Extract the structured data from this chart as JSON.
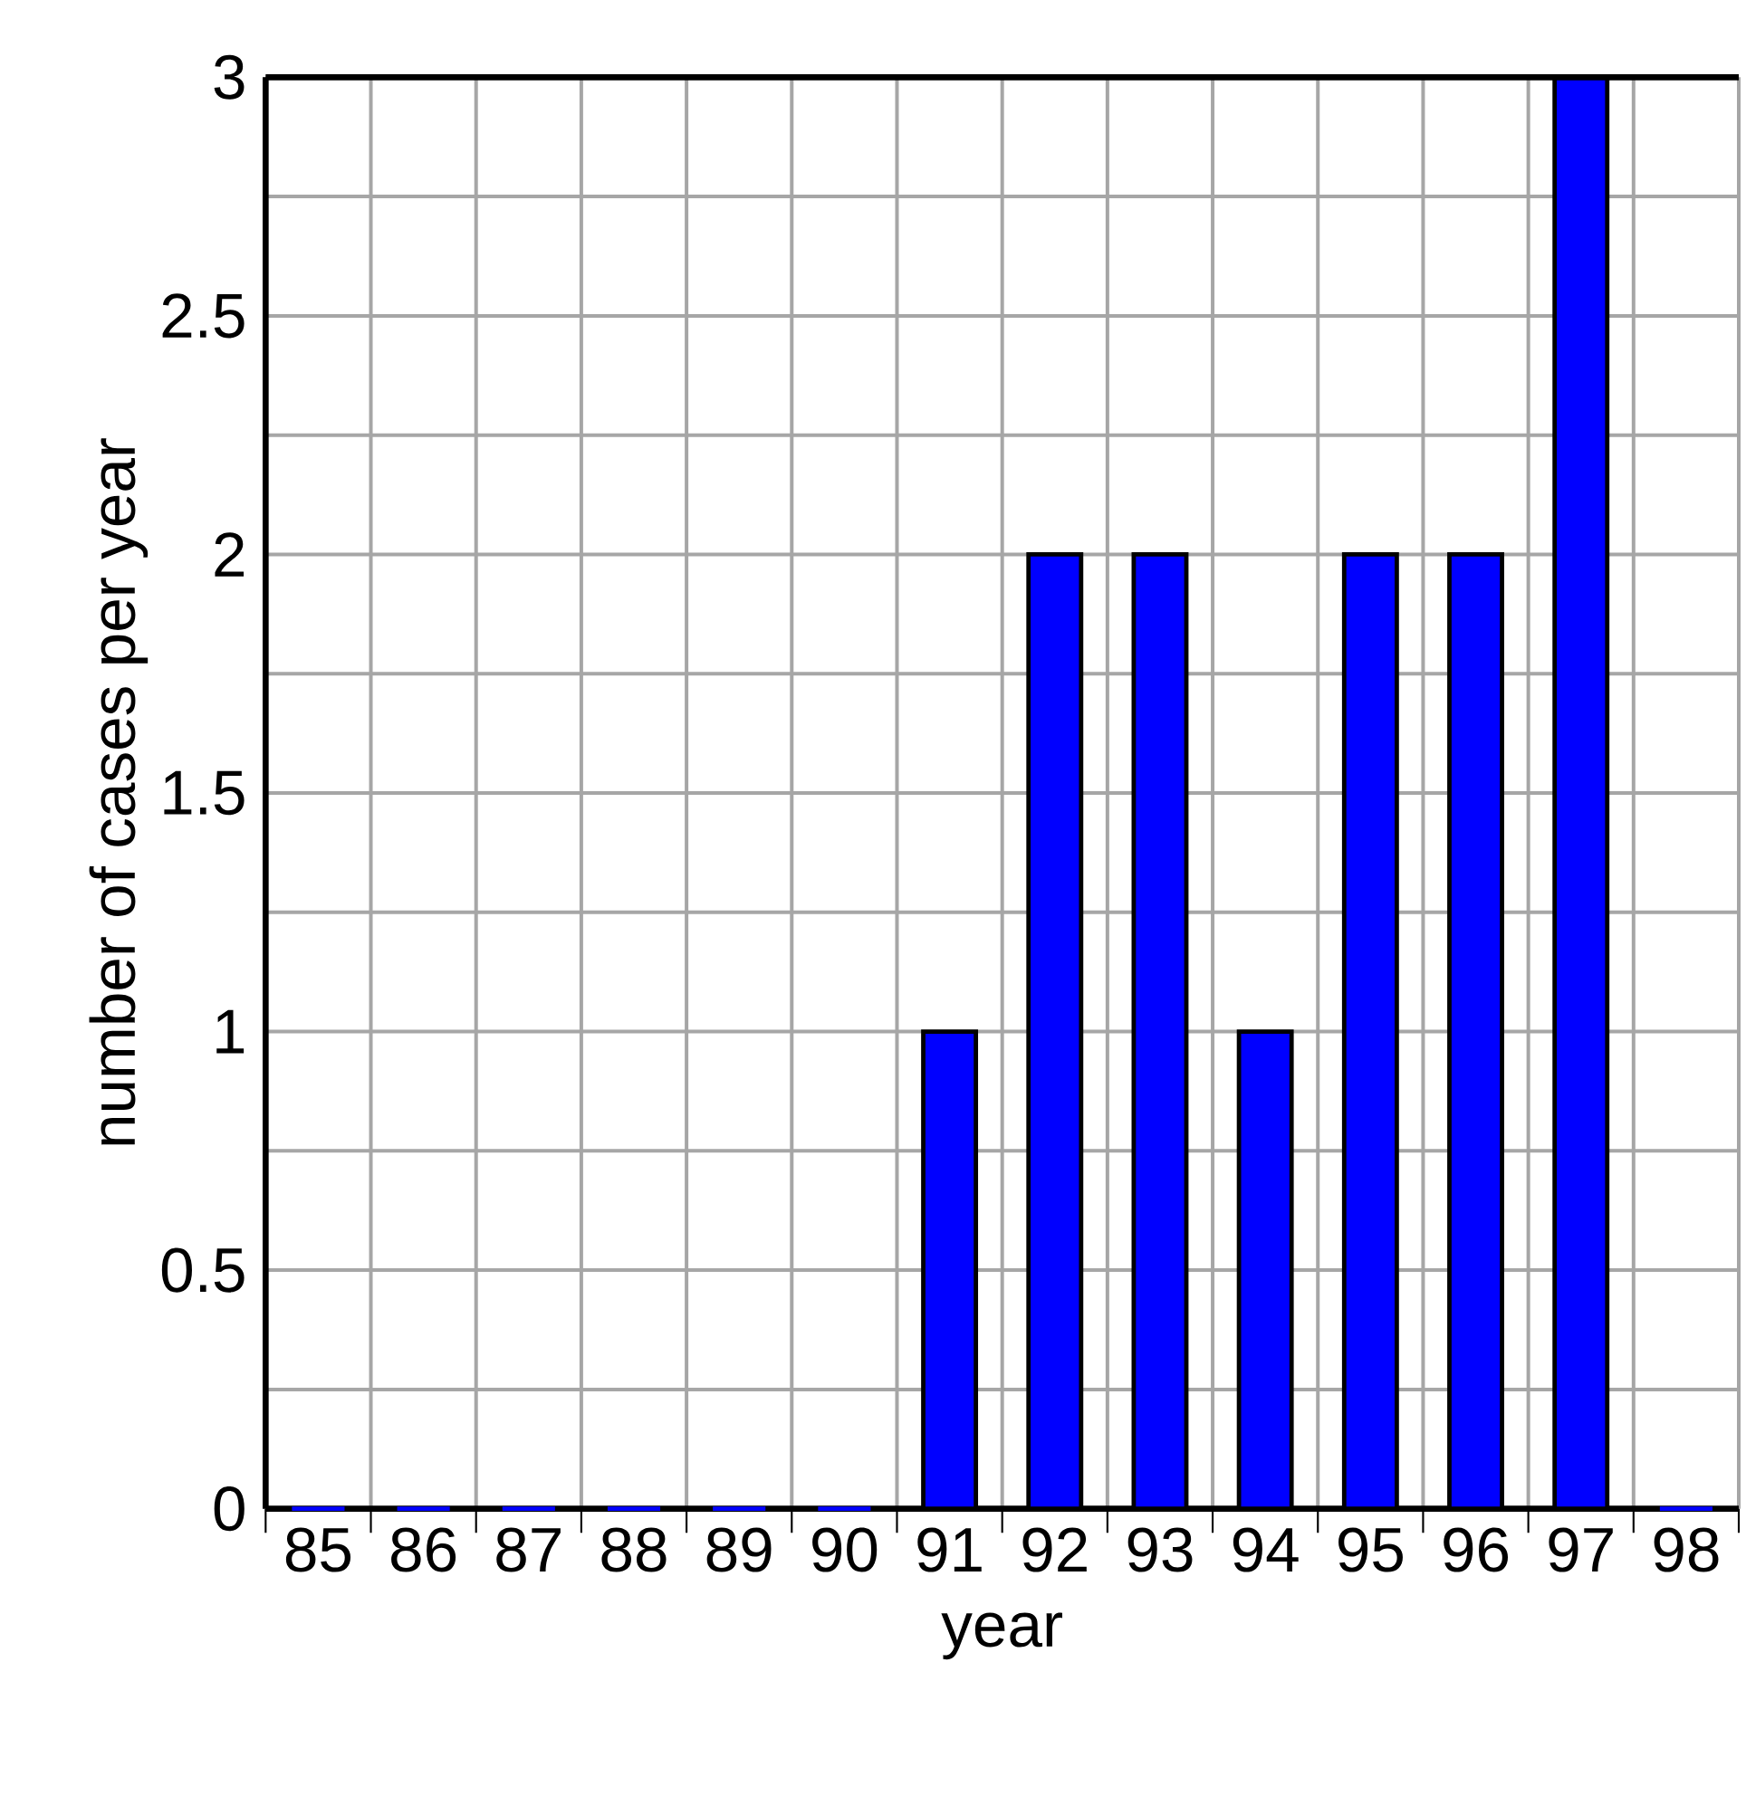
{
  "chart_data": {
    "type": "bar",
    "xlabel": "year",
    "ylabel": "number of cases per year",
    "categories": [
      "85",
      "86",
      "87",
      "88",
      "89",
      "90",
      "91",
      "92",
      "93",
      "94",
      "95",
      "96",
      "97",
      "98"
    ],
    "values": [
      0,
      0,
      0,
      0,
      0,
      0,
      1,
      2,
      2,
      1,
      2,
      2,
      3,
      0
    ],
    "color": "#0000ff",
    "ylim": [
      0,
      3
    ],
    "yticks": [
      0,
      {
        "value": 0.25,
        "label": null
      },
      0.5,
      {
        "value": 0.75,
        "label": null
      },
      1,
      {
        "value": 1.25,
        "label": null
      },
      1.5,
      {
        "value": 1.75,
        "label": null
      },
      2,
      {
        "value": 2.25,
        "label": null
      },
      2.5,
      {
        "value": 2.75,
        "label": null
      },
      3
    ],
    "grid": true
  }
}
